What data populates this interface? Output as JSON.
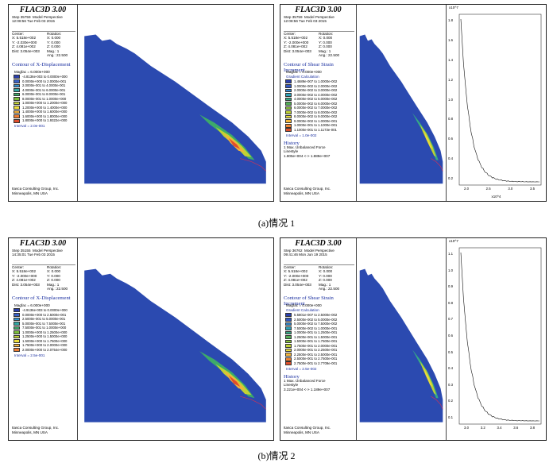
{
  "panels": {
    "a_disp": {
      "title": "FLAC3D 3.00",
      "step_line": "Step 35759  Model Perspective",
      "time_line": "12:08:56 Tue Feb 03 2015",
      "center_label": "Center:",
      "center_x": "X: 5.518e+002",
      "center_y": "Y: -2.030e+000",
      "center_z": "Z: 4.081e+002",
      "dist": "Dist: 3.054e+003",
      "rotation_label": "Rotation:",
      "rot_x": "X:  0.000",
      "rot_y": "Y:  0.000",
      "rot_z": "Z:  0.000",
      "mag": "Mag.:       1",
      "ang": "Ang.:  22.500",
      "contour_title": "Contour of X-Displacement",
      "magfac": "Magfac = 6.000e+000",
      "gradient": "",
      "legend": [
        "-4.8136e-003 to  0.0000e+000",
        "0.0000e+000 to  2.0000e-001",
        "2.0000e-001 to  4.0000e-001",
        "4.0000e-001 to  6.0000e-001",
        "6.0000e-001 to  8.0000e-001",
        "8.0000e-001 to  1.0000e+000",
        "1.0000e+000 to  1.2000e+000",
        "1.2000e+000 to  1.4000e+000",
        "1.4000e+000 to  1.6000e+000",
        "1.6000e+000 to  1.8000e+000",
        "1.8000e+000 to  1.9322e+000"
      ],
      "interval": "Interval = 2.0e-001",
      "company": "Itasca Consulting Group, Inc.",
      "city": "Minneapolis, MN  USA"
    },
    "a_shear": {
      "title": "FLAC3D 3.00",
      "step_line": "Step 35759  Model Perspective",
      "time_line": "12:08:56 Tue Feb 03 2015",
      "center_label": "Center:",
      "center_x": "X: 5.518e+002",
      "center_y": "Y: -2.000e+000",
      "center_z": "Z: 4.081e+002",
      "dist": "Dist: 3.054e+003",
      "rotation_label": "Rotation:",
      "rot_x": "X:  0.000",
      "rot_y": "Y:  0.000",
      "rot_z": "Z:  0.000",
      "mag": "Mag.:       1",
      "ang": "Ang.:  22.500",
      "contour_title": "Contour of Shear Strain Increment",
      "magfac": "Magfac = 0.000e+000",
      "gradient": "Gradient Calculation",
      "legend": [
        "1.4689e-007 to  1.0000e-002",
        "1.0000e-002 to  2.0000e-002",
        "2.0000e-002 to  3.0000e-002",
        "3.0000e-002 to  4.0000e-002",
        "4.0000e-002 to  5.0000e-002",
        "5.0000e-002 to  6.0000e-002",
        "6.0000e-002 to  7.0000e-002",
        "7.0000e-002 to  8.0000e-002",
        "8.0000e-002 to  9.0000e-002",
        "9.0000e-002 to  1.0000e-001",
        "1.0000e-001 to  1.1000e-001",
        "1.1000e-001 to  1.1173e-001"
      ],
      "interval": "Interval = 1.0e-002",
      "history_title": "History",
      "history_1": "1 Max. Unbalanced Force",
      "history_2": "Linestyle",
      "history_3": "1.805e+004 <-> 1.889e+007",
      "company": "Itasca Consulting Group, Inc.",
      "city": "Minneapolis, MN  USA",
      "graph_top": "x10^7",
      "graph_bottom": "x10^4",
      "y_ticks": [
        "1.8",
        "1.6",
        "1.4",
        "1.2",
        "1.0",
        "0.8",
        "0.6",
        "0.4",
        "0.2"
      ],
      "x_ticks": [
        "2.0",
        "2.5",
        "3.0",
        "3.5"
      ]
    },
    "b_disp": {
      "title": "FLAC3D 3.00",
      "step_line": "Step 35155  Model Perspective",
      "time_line": "14:35:01 Tue Feb 03 2015",
      "center_label": "Center:",
      "center_x": "X: 5.518e+002",
      "center_y": "Y: -2.000e+000",
      "center_z": "Z: 4.081e+002",
      "dist": "Dist: 3.054e+003",
      "rotation_label": "Rotation:",
      "rot_x": "X:  0.000",
      "rot_y": "Y:  0.000",
      "rot_z": "Z:  0.000",
      "mag": "Mag.:       1",
      "ang": "Ang.:  22.500",
      "contour_title": "Contour of X-Displacement",
      "magfac": "Magfac = 6.000e+000",
      "gradient": "",
      "legend": [
        "-4.9136e-003 to  0.0000e+000",
        "0.0000e+000 to  2.5000e-001",
        "2.5000e-001 to  5.0000e-001",
        "5.0000e-001 to  7.5000e-001",
        "7.5000e-001 to  1.0000e+000",
        "1.0000e+000 to  1.2500e+000",
        "1.2500e+000 to  1.5000e+000",
        "1.5000e+000 to  1.7500e+000",
        "1.7500e+000 to  2.0000e+000",
        "2.0000e+000 to  2.0754e+000"
      ],
      "interval": "Interval = 2.5e-001",
      "company": "Itasca Consulting Group, Inc.",
      "city": "Minneapolis, MN  USA"
    },
    "b_shear": {
      "title": "FLAC3D 3.00",
      "step_line": "Step 36762  Model Perspective",
      "time_line": "09:41:46 Mon Jun 19 2015",
      "center_label": "Center:",
      "center_x": "X: 5.518e+002",
      "center_y": "Y: -2.000e+000",
      "center_z": "Z: 4.081e+002",
      "dist": "Dist: 3.054e+003",
      "rotation_label": "Rotation:",
      "rot_x": "X:  0.000",
      "rot_y": "Y:  0.000",
      "rot_z": "Z:  0.000",
      "mag": "Mag.:       1",
      "ang": "Ang.:  22.500",
      "contour_title": "Contour of Shear Strain Increment",
      "magfac": "Magfac = 0.000e+000",
      "gradient": "Gradient Calculation",
      "legend": [
        "5.5801e-007 to  2.5000e-002",
        "2.5000e-002 to  5.0000e-002",
        "5.0000e-002 to  7.5000e-002",
        "7.5000e-002 to  1.0000e-001",
        "1.0000e-001 to  1.2500e-001",
        "1.2500e-001 to  1.5000e-001",
        "1.5000e-001 to  1.7500e-001",
        "1.7500e-001 to  2.0000e-001",
        "2.0000e-001 to  2.2500e-001",
        "2.2500e-001 to  2.5000e-001",
        "2.5000e-001 to  2.7500e-001",
        "2.7500e-001 to  2.7709e-001"
      ],
      "interval": "Interval = 2.5e-002",
      "history_title": "History",
      "history_1": "1 Max. Unbalanced Force",
      "history_2": "Linestyle",
      "history_3": "3.221e+004 <-> 1.189e+007",
      "company": "Itasca Consulting Group, Inc.",
      "city": "Minneapolis, MN  USA",
      "graph_top": "x10^7",
      "graph_bottom": "",
      "y_ticks": [
        "1.1",
        "1.0",
        "0.9",
        "0.8",
        "0.7",
        "0.6",
        "0.5",
        "0.4",
        "0.3",
        "0.2",
        "0.1"
      ],
      "x_ticks": [
        "3.0",
        "3.2",
        "3.4",
        "3.6",
        "3.8"
      ]
    }
  },
  "captions": {
    "a": "(a)情况 1",
    "b": "(b)情况 2"
  },
  "colors": {
    "disp_scale": [
      "#2a3fae",
      "#3b62c8",
      "#2f8fcf",
      "#33a7a3",
      "#3daa6a",
      "#7cbf3c",
      "#c2d234",
      "#eede3a",
      "#f3b23b",
      "#ee7c33",
      "#e04d2c"
    ],
    "shear_scale": [
      "#2a3fae",
      "#3258c2",
      "#2f86cc",
      "#2ea2b9",
      "#35a886",
      "#52ae56",
      "#86c13a",
      "#bfd134",
      "#e8dc3a",
      "#f3b63c",
      "#ef8534",
      "#e0502c"
    ],
    "model_blue": "#2b4ab0"
  }
}
